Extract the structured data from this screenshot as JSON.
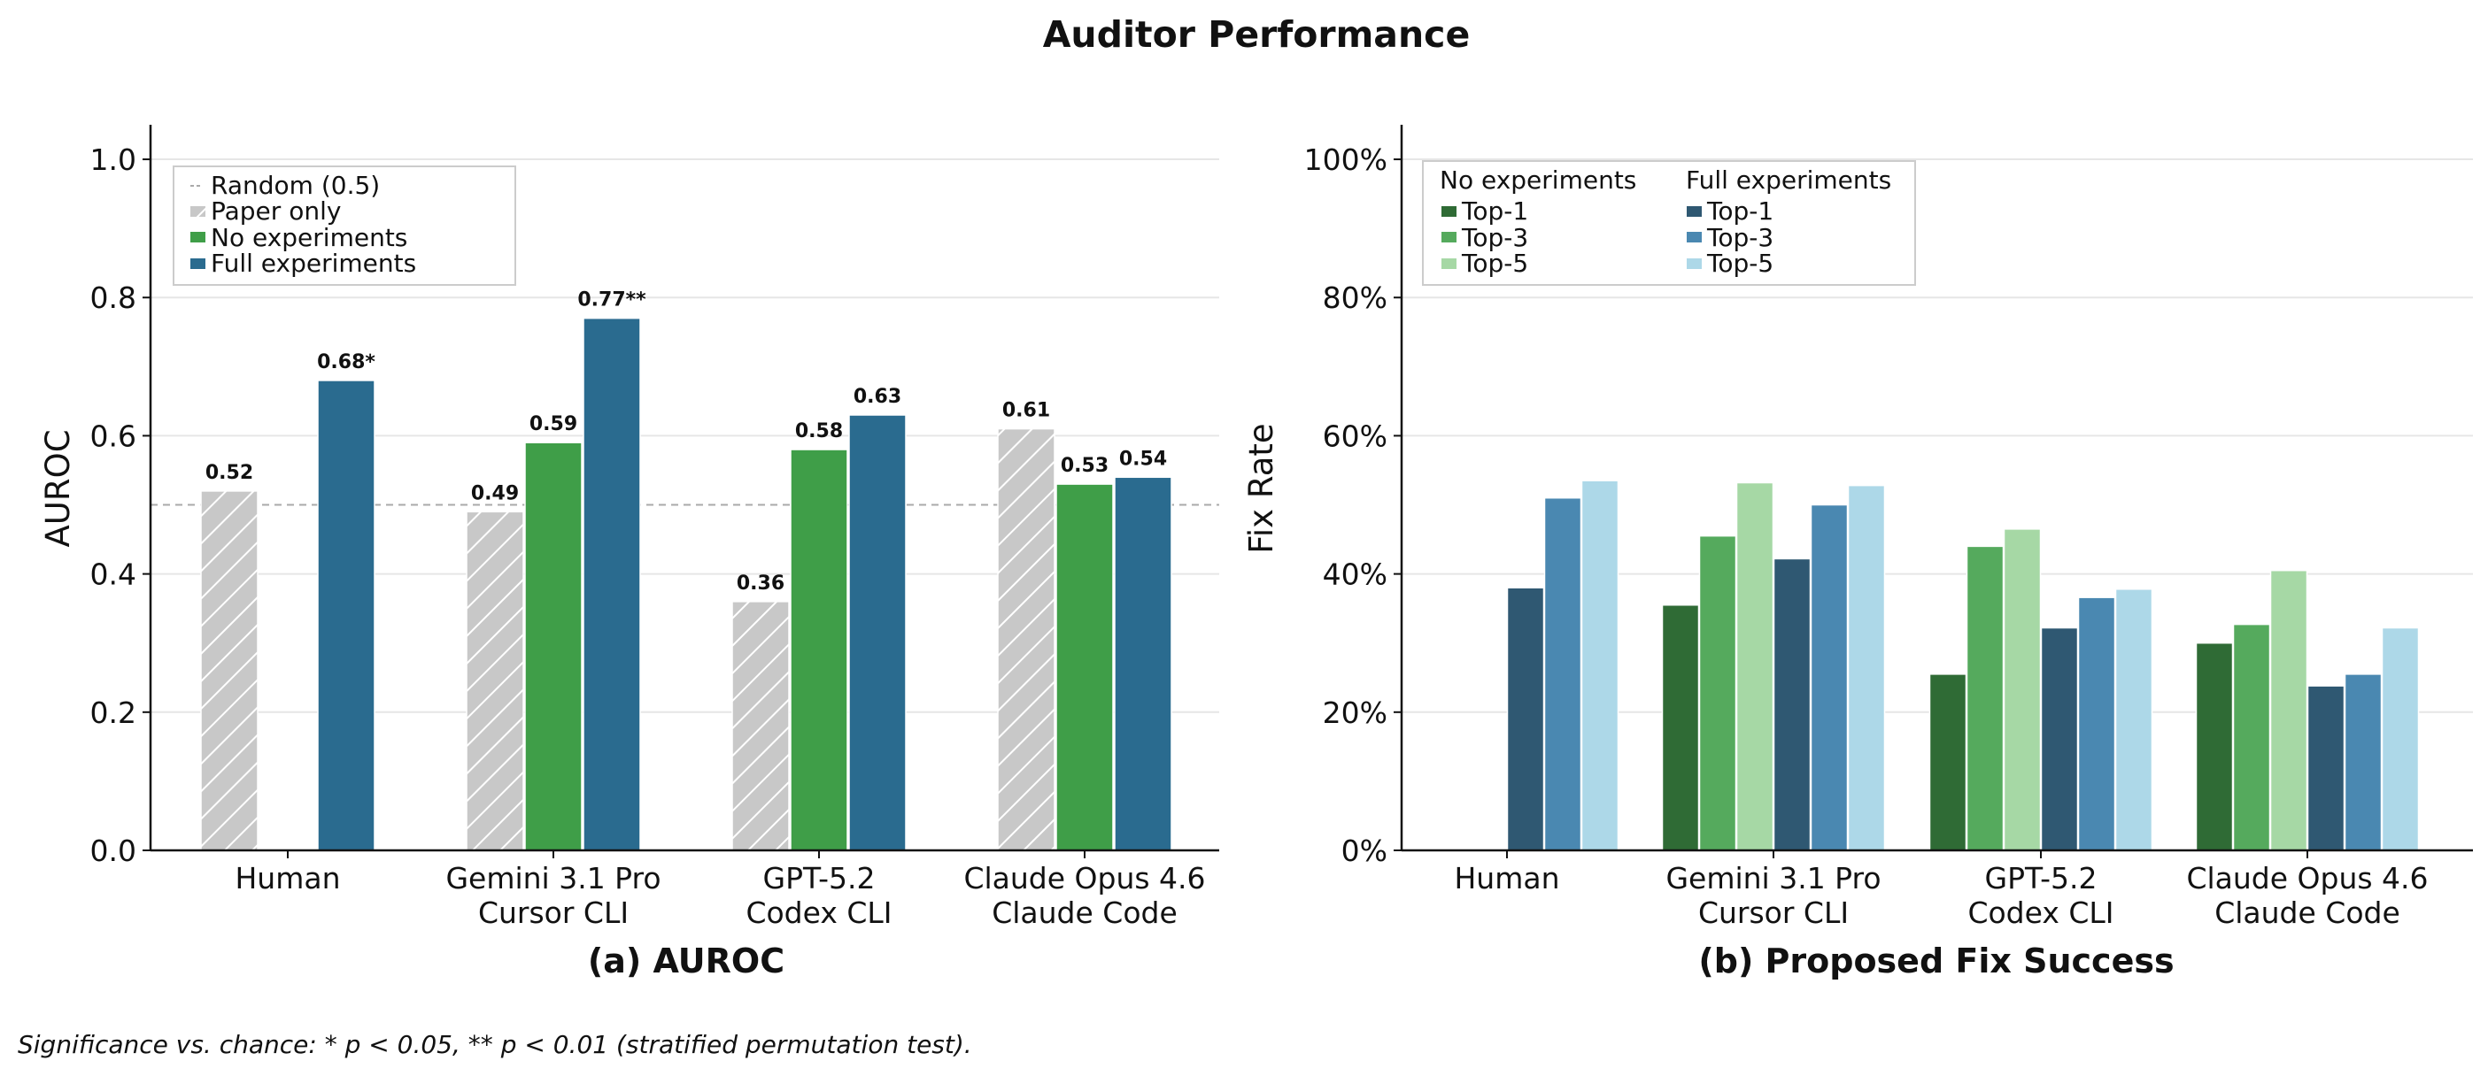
{
  "title": "Auditor Performance",
  "footnote": "Significance vs. chance: * p < 0.05, ** p < 0.01 (stratified permutation test).",
  "colors": {
    "paper": "#c8c8c8",
    "no_exp": "#3f9e48",
    "full_exp": "#2a6b8f",
    "no_top1": "#2f6b35",
    "no_top3": "#55aa5d",
    "no_top5": "#a6d8a5",
    "full_top1": "#2f5872",
    "full_top3": "#4a88b1",
    "full_top5": "#add8e8",
    "grid": "#e6e6e6",
    "chance": "#aaaaaa"
  },
  "chart_data": [
    {
      "type": "bar",
      "subtitle": "(a) AUROC",
      "ylabel": "AUROC",
      "xlabel": "",
      "ylim": [
        0,
        1.05
      ],
      "yticks": [
        0.0,
        0.2,
        0.4,
        0.6,
        0.8,
        1.0
      ],
      "ytick_labels": [
        "0.0",
        "0.2",
        "0.4",
        "0.6",
        "0.8",
        "1.0"
      ],
      "grid": true,
      "categories": [
        [
          "Human"
        ],
        [
          "Gemini 3.1 Pro",
          "Cursor CLI"
        ],
        [
          "GPT-5.2",
          "Codex CLI"
        ],
        [
          "Claude Opus 4.6",
          "Claude Code"
        ]
      ],
      "series": [
        {
          "name": "Paper only",
          "values": [
            0.52,
            0.49,
            0.36,
            0.61
          ],
          "labels": [
            "0.52",
            "0.49",
            "0.36",
            "0.61"
          ],
          "hatch": true
        },
        {
          "name": "No experiments",
          "values": [
            null,
            0.59,
            0.58,
            0.53
          ],
          "labels": [
            "",
            "0.59",
            "0.58",
            "0.53"
          ]
        },
        {
          "name": "Full experiments",
          "values": [
            0.68,
            0.77,
            0.63,
            0.54
          ],
          "labels": [
            "0.68*",
            "0.77**",
            "0.63",
            "0.54"
          ]
        }
      ],
      "reference_line": {
        "name": "Random (0.5)",
        "value": 0.5
      },
      "legend": {
        "position": "top-left",
        "entries": [
          "Random (0.5)",
          "Paper only",
          "No experiments",
          "Full experiments"
        ]
      }
    },
    {
      "type": "bar",
      "subtitle": "(b) Proposed Fix Success",
      "ylabel": "Fix Rate",
      "xlabel": "",
      "ylim": [
        0,
        105
      ],
      "yticks": [
        0,
        20,
        40,
        60,
        80,
        100
      ],
      "ytick_labels": [
        "0%",
        "20%",
        "40%",
        "60%",
        "80%",
        "100%"
      ],
      "grid": true,
      "categories": [
        [
          "Human"
        ],
        [
          "Gemini 3.1 Pro",
          "Cursor CLI"
        ],
        [
          "GPT-5.2",
          "Codex CLI"
        ],
        [
          "Claude Opus 4.6",
          "Claude Code"
        ]
      ],
      "series": [
        {
          "name": "No experiments Top-1",
          "values": [
            null,
            35.5,
            25.5,
            30.0
          ]
        },
        {
          "name": "No experiments Top-3",
          "values": [
            null,
            45.5,
            44.0,
            32.7
          ]
        },
        {
          "name": "No experiments Top-5",
          "values": [
            null,
            53.2,
            46.5,
            40.5
          ]
        },
        {
          "name": "Full experiments Top-1",
          "values": [
            38.0,
            42.2,
            32.2,
            23.8
          ]
        },
        {
          "name": "Full experiments Top-3",
          "values": [
            51.0,
            50.0,
            36.6,
            25.5
          ]
        },
        {
          "name": "Full experiments Top-5",
          "values": [
            53.5,
            52.8,
            37.8,
            32.2
          ]
        }
      ],
      "legend": {
        "position": "top-left",
        "groups": [
          {
            "title": "No experiments",
            "entries": [
              "Top-1",
              "Top-3",
              "Top-5"
            ]
          },
          {
            "title": "Full experiments",
            "entries": [
              "Top-1",
              "Top-3",
              "Top-5"
            ]
          }
        ]
      }
    }
  ]
}
